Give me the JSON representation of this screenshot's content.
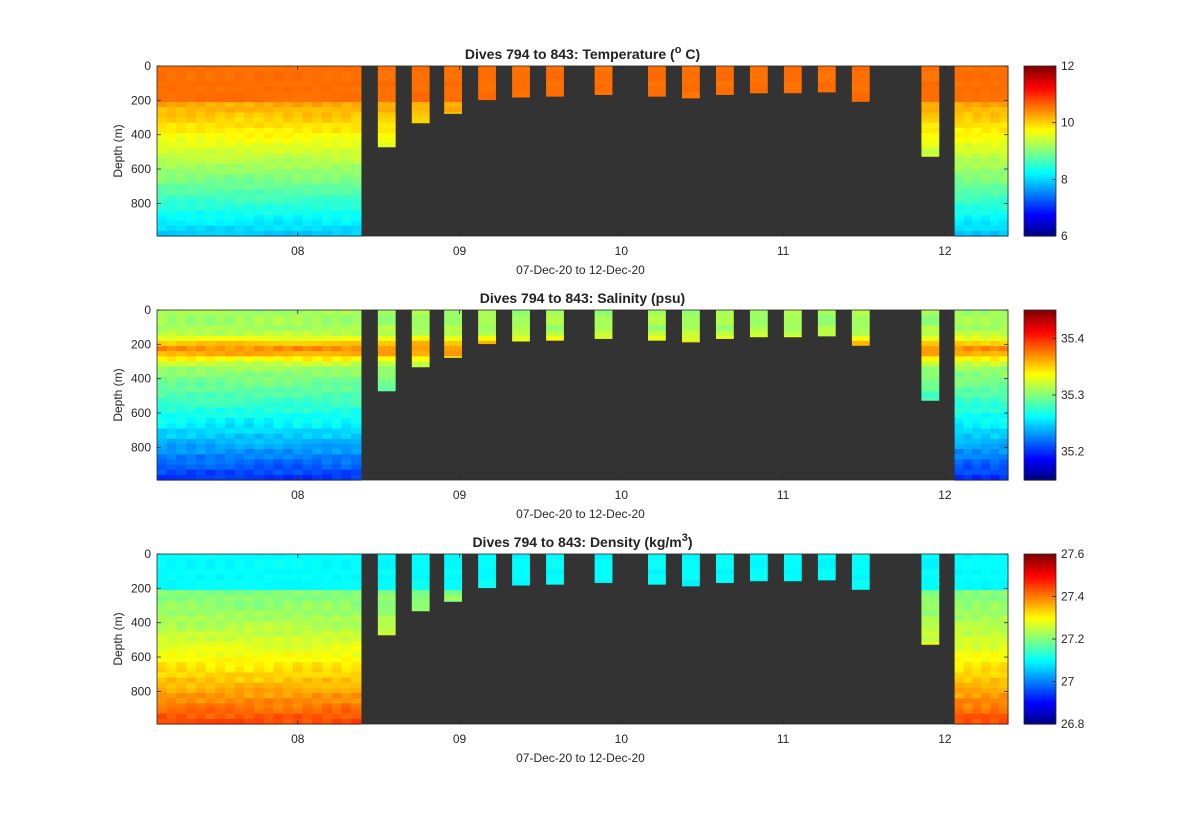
{
  "chart_data": [
    {
      "type": "heatmap",
      "title": "Dives 794 to 843: Temperature (",
      "title_sup": "o",
      "title_suffix": " C)",
      "xlabel": "07-Dec-20 to 12-Dec-20",
      "ylabel": "Depth (m)",
      "xticks": [
        "08",
        "09",
        "10",
        "11",
        "12"
      ],
      "yticks": [
        "0",
        "200",
        "400",
        "600",
        "800"
      ],
      "ylim": [
        0,
        990
      ],
      "xlim_days": [
        7.13,
        12.39
      ],
      "clim": [
        6,
        12
      ],
      "colorbar_ticks": [
        "6",
        "8",
        "10",
        "12"
      ],
      "colormap": "jet",
      "background_color": "#333333",
      "surface_value": 10.6,
      "deep_value": 7.9,
      "transition_depth": 200
    },
    {
      "type": "heatmap",
      "title": "Dives 794 to 843: Salinity (psu)",
      "title_sup": "",
      "title_suffix": "",
      "xlabel": "07-Dec-20 to 12-Dec-20",
      "ylabel": "Depth (m)",
      "xticks": [
        "08",
        "09",
        "10",
        "11",
        "12"
      ],
      "yticks": [
        "0",
        "200",
        "400",
        "600",
        "800"
      ],
      "ylim": [
        0,
        990
      ],
      "xlim_days": [
        7.13,
        12.39
      ],
      "clim": [
        35.15,
        35.45
      ],
      "colorbar_ticks": [
        "35.2",
        "35.3",
        "35.4"
      ],
      "colormap": "jet",
      "background_color": "#333333",
      "surface_value": 35.31,
      "peak_value": 35.37,
      "peak_depth": 230,
      "deep_value": 35.2
    },
    {
      "type": "heatmap",
      "title": "Dives 794 to 843: Density (kg/m",
      "title_sup": "3",
      "title_suffix": ")",
      "xlabel": "07-Dec-20 to 12-Dec-20",
      "ylabel": "Depth (m)",
      "xticks": [
        "08",
        "09",
        "10",
        "11",
        "12"
      ],
      "yticks": [
        "0",
        "200",
        "400",
        "600",
        "800"
      ],
      "ylim": [
        0,
        990
      ],
      "xlim_days": [
        7.13,
        12.39
      ],
      "clim": [
        26.8,
        27.6
      ],
      "colorbar_ticks": [
        "26.8",
        "27",
        "27.2",
        "27.4",
        "27.6"
      ],
      "colormap": "jet",
      "background_color": "#333333",
      "surface_value": 27.1,
      "deep_value": 27.45,
      "transition_depth": 200
    }
  ],
  "profile_data": {
    "full_depth": 990,
    "dense_segments": [
      {
        "start_day": 7.13,
        "end_day": 8.39,
        "dives": 21
      },
      {
        "start_day": 12.06,
        "end_day": 12.39,
        "dives": 6
      }
    ],
    "shallow_dives": [
      {
        "day": 8.55,
        "depth": 470
      },
      {
        "day": 8.76,
        "depth": 330
      },
      {
        "day": 8.96,
        "depth": 275
      },
      {
        "day": 9.17,
        "depth": 195
      },
      {
        "day": 9.38,
        "depth": 180
      },
      {
        "day": 9.59,
        "depth": 175
      },
      {
        "day": 9.89,
        "depth": 165
      },
      {
        "day": 10.22,
        "depth": 175
      },
      {
        "day": 10.43,
        "depth": 185
      },
      {
        "day": 10.64,
        "depth": 165
      },
      {
        "day": 10.85,
        "depth": 155
      },
      {
        "day": 11.06,
        "depth": 155
      },
      {
        "day": 11.27,
        "depth": 150
      },
      {
        "day": 11.48,
        "depth": 205
      },
      {
        "day": 11.91,
        "depth": 525
      }
    ],
    "shallow_dive_width_days": 0.11
  }
}
